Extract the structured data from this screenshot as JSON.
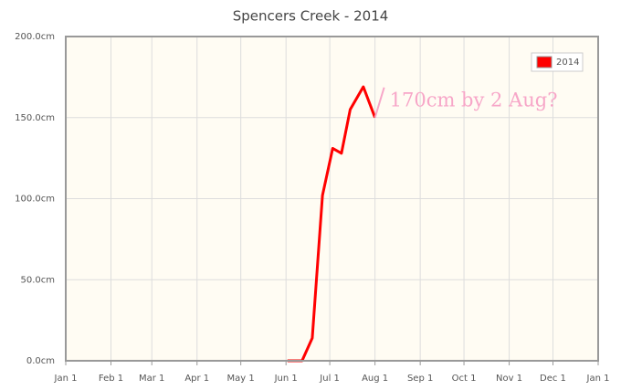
{
  "chart_data": {
    "type": "line",
    "title": "Spencers Creek - 2014",
    "x": [
      152,
      162,
      169,
      176,
      183,
      189,
      195,
      204,
      212
    ],
    "series": [
      {
        "name": "2014",
        "color": "#ff0000",
        "values": [
          0,
          0,
          14,
          102,
          131,
          128,
          155,
          169,
          150
        ]
      }
    ],
    "xlim": [
      0,
      365
    ],
    "xticks": [
      {
        "value": 0,
        "label": "Jan 1"
      },
      {
        "value": 31,
        "label": "Feb 1"
      },
      {
        "value": 59,
        "label": "Mar 1"
      },
      {
        "value": 90,
        "label": "Apr 1"
      },
      {
        "value": 120,
        "label": "May 1"
      },
      {
        "value": 151,
        "label": "Jun 1"
      },
      {
        "value": 181,
        "label": "Jul 1"
      },
      {
        "value": 212,
        "label": "Aug 1"
      },
      {
        "value": 243,
        "label": "Sep 1"
      },
      {
        "value": 273,
        "label": "Oct 1"
      },
      {
        "value": 304,
        "label": "Nov 1"
      },
      {
        "value": 334,
        "label": "Dec 1"
      },
      {
        "value": 365,
        "label": "Jan 1"
      }
    ],
    "ylim": [
      0,
      200
    ],
    "yticks": [
      {
        "value": 0,
        "label": "0.0cm"
      },
      {
        "value": 50,
        "label": "50.0cm"
      },
      {
        "value": 100,
        "label": "100.0cm"
      },
      {
        "value": 150,
        "label": "150.0cm"
      },
      {
        "value": 200,
        "label": "200.0cm"
      }
    ],
    "grid": true,
    "legend": "top-right",
    "annotation": "170cm by 2 Aug?",
    "annotation_color": "#f7a6c8"
  }
}
